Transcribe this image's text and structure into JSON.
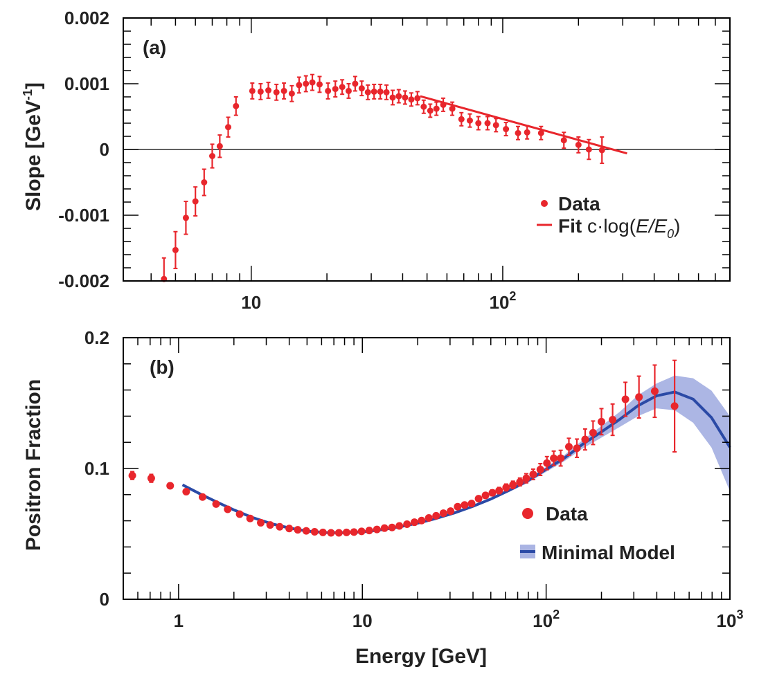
{
  "chart_data": [
    {
      "panel": "a",
      "type": "scatter",
      "panel_label": "(a)",
      "ylabel": "Slope [GeV",
      "ylabel_sup": "-1",
      "ylabel_close": "]",
      "xscale": "log",
      "xlim": [
        3.1,
        800
      ],
      "ylim": [
        -0.002,
        0.002
      ],
      "y_ticks": [
        {
          "value": -0.002,
          "label": "-0.002"
        },
        {
          "value": -0.001,
          "label": "-0.001"
        },
        {
          "value": 0,
          "label": "0"
        },
        {
          "value": 0.001,
          "label": "0.001"
        },
        {
          "value": 0.002,
          "label": "0.002"
        }
      ],
      "x_tick_labels": [
        {
          "value": 10,
          "base": "10",
          "exp": ""
        },
        {
          "value": 100,
          "base": "10",
          "exp": "2"
        }
      ],
      "series": [
        {
          "name": "Data",
          "color": "#e8262c",
          "points": [
            [
              4.5,
              -0.00197,
              0.00032
            ],
            [
              5.0,
              -0.00153,
              0.00028
            ],
            [
              5.5,
              -0.00104,
              0.00025
            ],
            [
              6.0,
              -0.00079,
              0.00022
            ],
            [
              6.5,
              -0.0005,
              0.0002
            ],
            [
              7.0,
              -0.0001,
              0.00018
            ],
            [
              7.5,
              5e-05,
              0.00017
            ],
            [
              8.1,
              0.00034,
              0.00015
            ],
            [
              8.7,
              0.00066,
              0.00014
            ],
            [
              10.1,
              0.00089,
              0.00012
            ],
            [
              10.9,
              0.00088,
              0.00012
            ],
            [
              11.7,
              0.0009,
              0.00012
            ],
            [
              12.6,
              0.00087,
              0.00012
            ],
            [
              13.5,
              0.00089,
              0.00012
            ],
            [
              14.5,
              0.00085,
              0.00012
            ],
            [
              15.5,
              0.00098,
              0.00012
            ],
            [
              16.5,
              0.001,
              0.00012
            ],
            [
              17.5,
              0.00102,
              0.00012
            ],
            [
              18.7,
              0.00099,
              0.00012
            ],
            [
              20.2,
              0.00089,
              0.00012
            ],
            [
              21.6,
              0.00092,
              0.00012
            ],
            [
              23.0,
              0.00095,
              0.00011
            ],
            [
              24.4,
              0.00089,
              0.00011
            ],
            [
              25.9,
              0.001,
              0.00011
            ],
            [
              27.5,
              0.00093,
              0.00011
            ],
            [
              29.1,
              0.00087,
              0.00011
            ],
            [
              30.8,
              0.00088,
              0.00011
            ],
            [
              32.6,
              0.00088,
              0.00011
            ],
            [
              34.5,
              0.00087,
              0.00011
            ],
            [
              36.5,
              0.00079,
              0.00011
            ],
            [
              38.6,
              0.00081,
              0.0001
            ],
            [
              40.9,
              0.00079,
              0.0001
            ],
            [
              43.3,
              0.00076,
              0.0001
            ],
            [
              45.8,
              0.00078,
              0.0001
            ],
            [
              48.5,
              0.00065,
              0.0001
            ],
            [
              51.5,
              0.00059,
              0.0001
            ],
            [
              54.5,
              0.00062,
              0.0001
            ],
            [
              58.0,
              0.00068,
              0.0001
            ],
            [
              63.0,
              0.00062,
              0.0001
            ],
            [
              68.5,
              0.00046,
              0.0001
            ],
            [
              74.0,
              0.00044,
              0.0001
            ],
            [
              80.0,
              0.0004,
              0.0001
            ],
            [
              87.0,
              0.0004,
              0.0001
            ],
            [
              94.0,
              0.00037,
              0.0001
            ],
            [
              103.0,
              0.00031,
              0.0001
            ],
            [
              115.0,
              0.00025,
              0.0001
            ],
            [
              125.0,
              0.00026,
              0.0001
            ],
            [
              142.0,
              0.00025,
              0.0001
            ],
            [
              175.0,
              0.00014,
              0.00012
            ],
            [
              200.0,
              7e-05,
              0.00012
            ],
            [
              220.0,
              0.0,
              0.00015
            ],
            [
              248.0,
              -1e-05,
              0.0002
            ]
          ]
        },
        {
          "name": "Fit",
          "color": "#e8262c",
          "type": "line",
          "formula": "c·log(E/E0)",
          "x": [
            47,
            312
          ],
          "y": [
            0.00081,
            -6e-05
          ]
        }
      ],
      "legend": {
        "placement": "right",
        "data_label": "Data",
        "fit_label": "Fit",
        "fit_formula_prefix": "c·log(",
        "fit_formula_num": "E/E",
        "fit_formula_sub": "0",
        "fit_formula_suffix": ")"
      }
    },
    {
      "panel": "b",
      "type": "scatter",
      "panel_label": "(b)",
      "ylabel": "Positron Fraction",
      "xlabel": "Energy [GeV]",
      "xscale": "log",
      "xlim": [
        0.5,
        1000
      ],
      "ylim": [
        0,
        0.2
      ],
      "y_ticks": [
        {
          "value": 0,
          "label": "0"
        },
        {
          "value": 0.1,
          "label": "0.1"
        },
        {
          "value": 0.2,
          "label": "0.2"
        }
      ],
      "x_tick_labels": [
        {
          "value": 1,
          "base": "1",
          "exp": ""
        },
        {
          "value": 10,
          "base": "10",
          "exp": ""
        },
        {
          "value": 100,
          "base": "10",
          "exp": "2"
        },
        {
          "value": 1000,
          "base": "10",
          "exp": "3"
        }
      ],
      "series": [
        {
          "name": "Data",
          "color": "#e8262c",
          "points": [
            [
              0.56,
              0.0946,
              0.003
            ],
            [
              0.71,
              0.0925,
              0.003
            ],
            [
              0.9,
              0.0868,
              0.002
            ],
            [
              1.1,
              0.0823,
              0.002
            ],
            [
              1.35,
              0.0782,
              0.0015
            ],
            [
              1.6,
              0.0728,
              0.0012
            ],
            [
              1.85,
              0.0688,
              0.0012
            ],
            [
              2.15,
              0.0651,
              0.001
            ],
            [
              2.45,
              0.0618,
              0.001
            ],
            [
              2.8,
              0.0585,
              0.001
            ],
            [
              3.15,
              0.0568,
              0.001
            ],
            [
              3.55,
              0.0554,
              0.001
            ],
            [
              4.0,
              0.0541,
              0.001
            ],
            [
              4.45,
              0.0531,
              0.001
            ],
            [
              4.95,
              0.0523,
              0.001
            ],
            [
              5.5,
              0.0516,
              0.001
            ],
            [
              6.1,
              0.0511,
              0.001
            ],
            [
              6.75,
              0.0508,
              0.001
            ],
            [
              7.45,
              0.0508,
              0.001
            ],
            [
              8.2,
              0.0511,
              0.001
            ],
            [
              9.0,
              0.0514,
              0.001
            ],
            [
              9.9,
              0.0519,
              0.001
            ],
            [
              10.9,
              0.0526,
              0.001
            ],
            [
              12.0,
              0.0534,
              0.001
            ],
            [
              13.2,
              0.0544,
              0.001
            ],
            [
              14.5,
              0.0549,
              0.001
            ],
            [
              15.9,
              0.0561,
              0.001
            ],
            [
              17.5,
              0.0574,
              0.001
            ],
            [
              19.2,
              0.0589,
              0.001
            ],
            [
              21.0,
              0.0602,
              0.0012
            ],
            [
              23.0,
              0.0622,
              0.0012
            ],
            [
              25.2,
              0.0638,
              0.0012
            ],
            [
              27.6,
              0.0658,
              0.0013
            ],
            [
              30.2,
              0.0674,
              0.0014
            ],
            [
              33.0,
              0.0708,
              0.0015
            ],
            [
              36.0,
              0.0721,
              0.0016
            ],
            [
              39.3,
              0.0732,
              0.0017
            ],
            [
              42.9,
              0.0769,
              0.0018
            ],
            [
              46.8,
              0.0794,
              0.002
            ],
            [
              51.0,
              0.0814,
              0.0022
            ],
            [
              55.5,
              0.0831,
              0.0024
            ],
            [
              60.6,
              0.0855,
              0.0026
            ],
            [
              66.0,
              0.0875,
              0.0028
            ],
            [
              72.0,
              0.0897,
              0.003
            ],
            [
              78.0,
              0.0925,
              0.0035
            ],
            [
              85.0,
              0.0955,
              0.004
            ],
            [
              93.0,
              0.0992,
              0.0045
            ],
            [
              101.0,
              0.1041,
              0.005
            ],
            [
              110.0,
              0.1078,
              0.0055
            ],
            [
              120.0,
              0.1079,
              0.006
            ],
            [
              133.0,
              0.1166,
              0.0065
            ],
            [
              147.0,
              0.1155,
              0.007
            ],
            [
              163.0,
              0.1222,
              0.008
            ],
            [
              180.0,
              0.1273,
              0.009
            ],
            [
              200.0,
              0.1358,
              0.01
            ],
            [
              230.0,
              0.1373,
              0.012
            ],
            [
              270.0,
              0.1529,
              0.013
            ],
            [
              320.0,
              0.1546,
              0.016
            ],
            [
              390.0,
              0.1591,
              0.02
            ],
            [
              500.0,
              0.1477,
              0.035
            ]
          ]
        },
        {
          "name": "Minimal Model",
          "color": "#2b4aa6",
          "band_color": "#7f8fd6",
          "type": "line",
          "x": [
            1.05,
            1.3,
            1.6,
            2.0,
            2.5,
            3.2,
            4.0,
            5.0,
            6.3,
            7.9,
            10,
            12.6,
            15.8,
            20,
            25,
            31.6,
            40,
            50,
            63,
            79,
            100,
            126,
            158,
            200,
            251,
            316,
            398,
            501,
            631,
            794,
            1000
          ],
          "y": [
            0.0875,
            0.0808,
            0.0746,
            0.0683,
            0.0627,
            0.0578,
            0.0545,
            0.0521,
            0.051,
            0.0509,
            0.0515,
            0.0531,
            0.0553,
            0.0582,
            0.0617,
            0.066,
            0.0711,
            0.0766,
            0.0834,
            0.0904,
            0.0993,
            0.1081,
            0.1185,
            0.128,
            0.1375,
            0.148,
            0.1555,
            0.1585,
            0.153,
            0.1389,
            0.1162
          ],
          "band_lower": [
            0.0873,
            0.0806,
            0.0744,
            0.0681,
            0.0625,
            0.0576,
            0.0543,
            0.0519,
            0.0508,
            0.0507,
            0.0513,
            0.0528,
            0.0549,
            0.0577,
            0.0611,
            0.0652,
            0.0702,
            0.0755,
            0.0821,
            0.0888,
            0.0974,
            0.1057,
            0.1153,
            0.1236,
            0.1317,
            0.14,
            0.146,
            0.1445,
            0.135,
            0.116,
            0.0826
          ],
          "band_upper": [
            0.0877,
            0.081,
            0.0748,
            0.0685,
            0.0629,
            0.058,
            0.0547,
            0.0523,
            0.0512,
            0.0511,
            0.0517,
            0.0534,
            0.0557,
            0.0587,
            0.0623,
            0.0668,
            0.072,
            0.0777,
            0.0847,
            0.092,
            0.1012,
            0.1105,
            0.1217,
            0.1324,
            0.1433,
            0.156,
            0.165,
            0.171,
            0.169,
            0.1595,
            0.14
          ]
        }
      ],
      "legend": {
        "placement": "right",
        "data_label": "Data",
        "model_label": "Minimal Model"
      }
    }
  ]
}
